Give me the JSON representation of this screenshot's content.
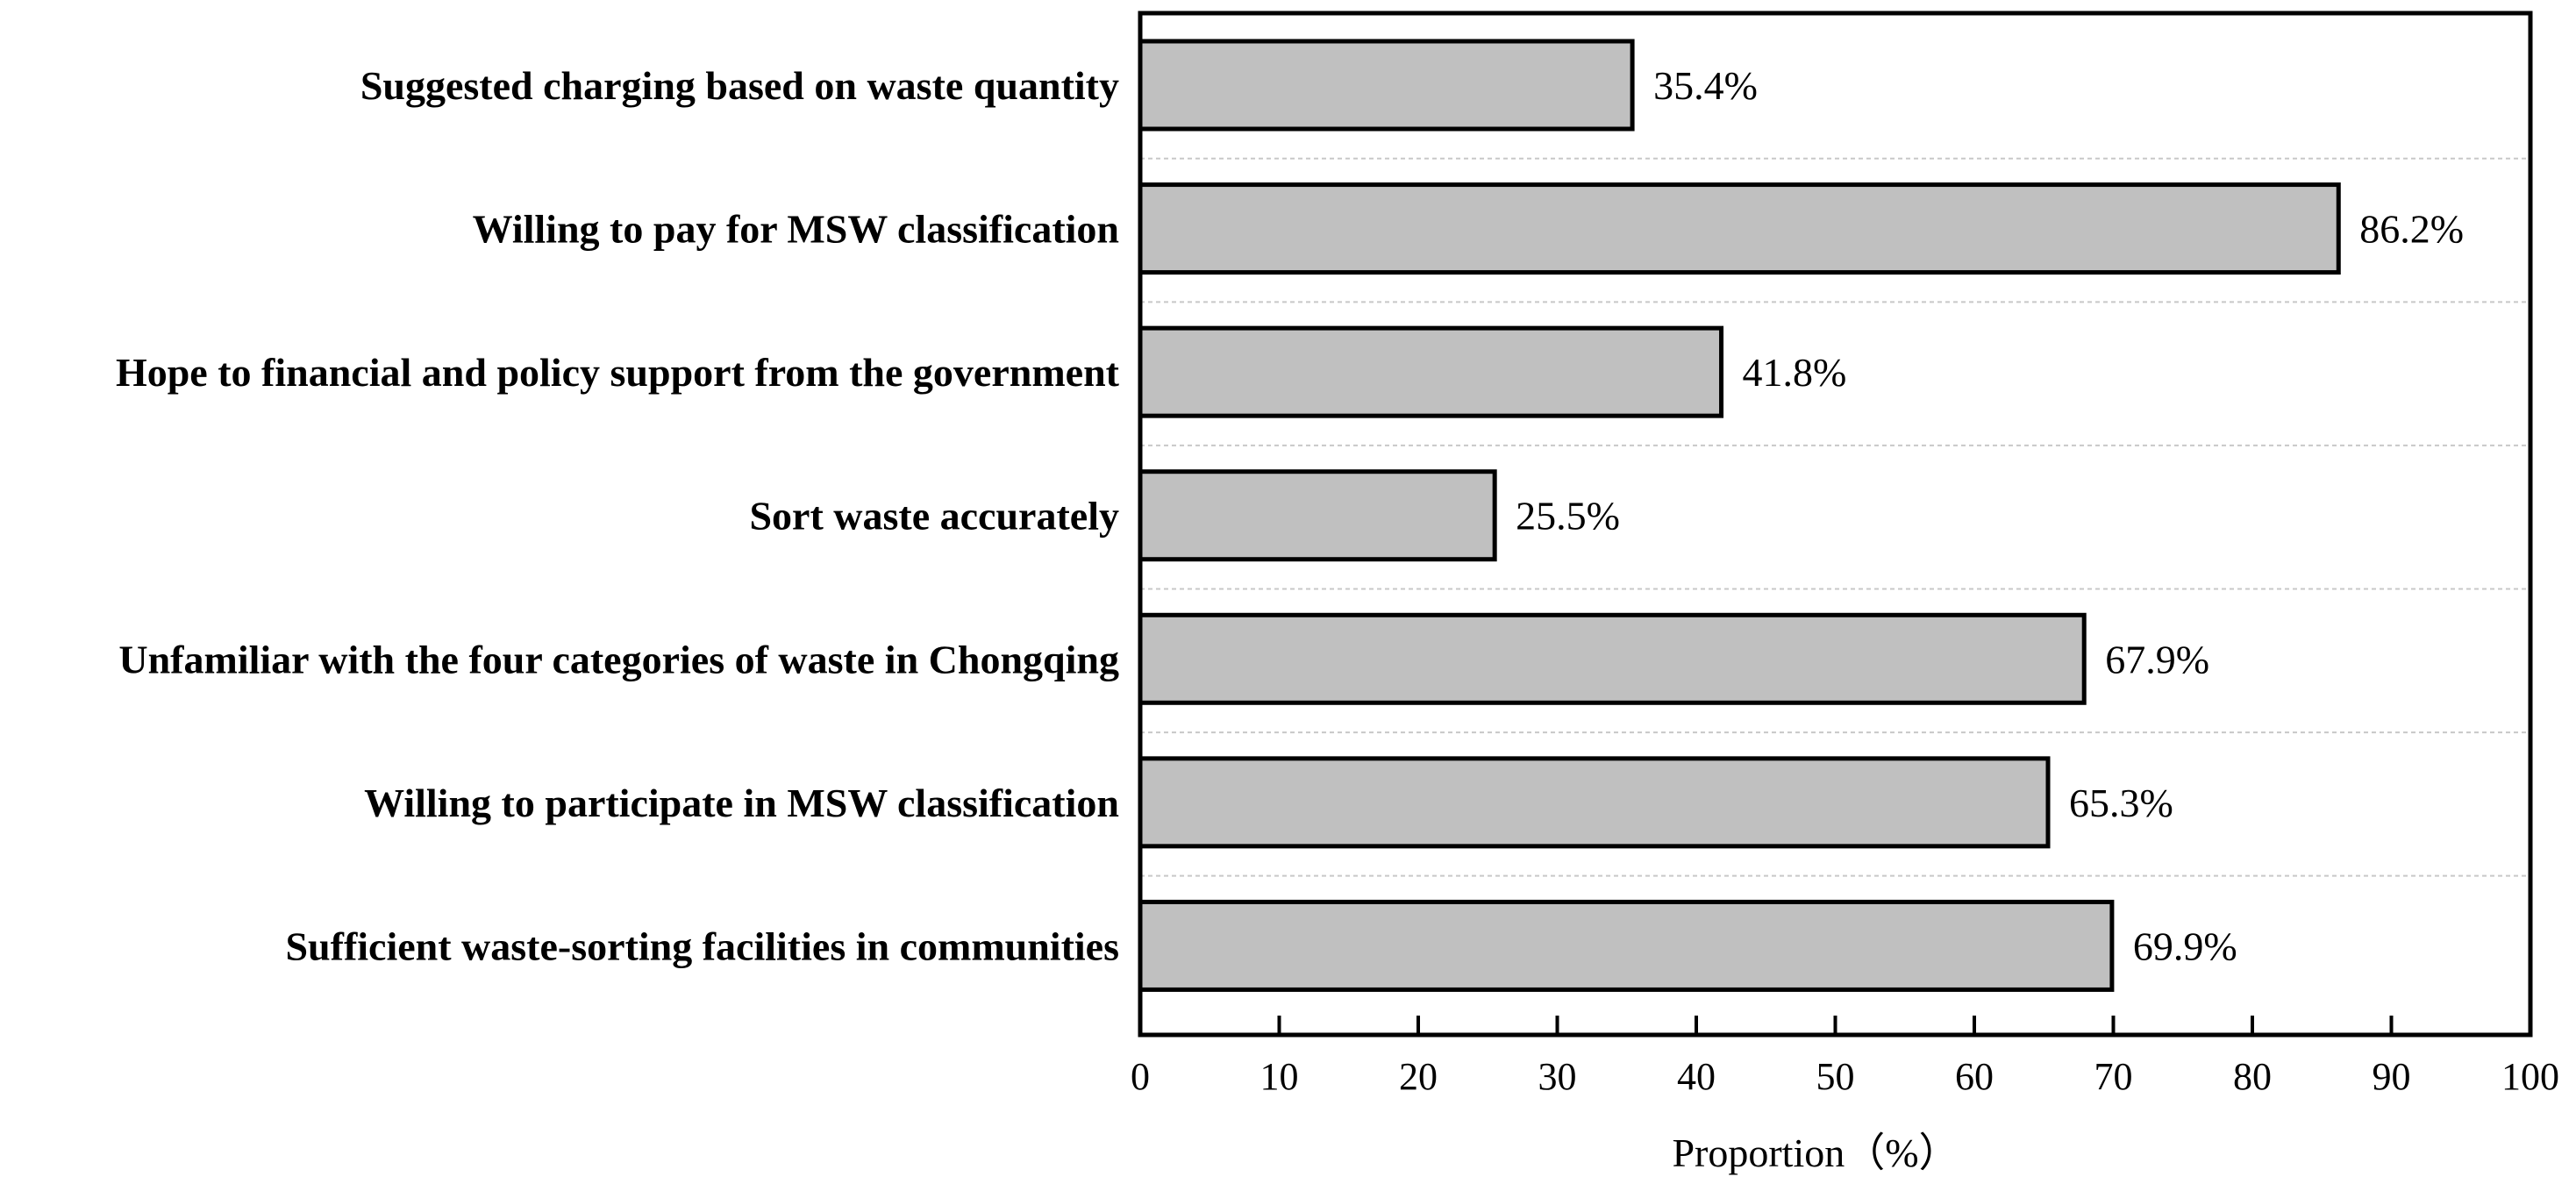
{
  "chart_data": {
    "type": "bar",
    "orientation": "horizontal",
    "title": "",
    "xlabel": "Proportion（%）",
    "ylabel": "",
    "xlim": [
      0,
      100
    ],
    "xticks": [
      0,
      10,
      20,
      30,
      40,
      50,
      60,
      70,
      80,
      90,
      100
    ],
    "grid": "dashed horizontal separators between categories",
    "colors": {
      "bar_fill": "#c0c0c0",
      "bar_stroke": "#000000",
      "grid": "#c8c8c8",
      "axis": "#000000"
    },
    "categories": [
      "Suggested charging based on waste quantity",
      "Willing to pay for MSW classification",
      "Hope to financial and policy support from the government",
      "Sort waste accurately",
      "Unfamiliar with the four categories of waste in Chongqing",
      "Willing to participate in MSW classification",
      "Sufficient waste-sorting facilities in communities"
    ],
    "values": [
      35.4,
      86.2,
      41.8,
      25.5,
      67.9,
      65.3,
      69.9
    ],
    "value_labels": [
      "35.4%",
      "86.2%",
      "41.8%",
      "25.5%",
      "67.9%",
      "65.3%",
      "69.9%"
    ]
  }
}
